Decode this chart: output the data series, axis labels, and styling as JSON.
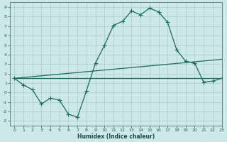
{
  "title": "",
  "xlabel": "Humidex (Indice chaleur)",
  "background_color": "#cce8e8",
  "grid_color": "#aacccc",
  "line_color": "#1a6b5a",
  "xlim": [
    -0.5,
    23
  ],
  "ylim": [
    -3.5,
    9.5
  ],
  "xticks": [
    0,
    1,
    2,
    3,
    4,
    5,
    6,
    7,
    8,
    9,
    10,
    11,
    12,
    13,
    14,
    15,
    16,
    17,
    18,
    19,
    20,
    21,
    22,
    23
  ],
  "yticks": [
    -3,
    -2,
    -1,
    0,
    1,
    2,
    3,
    4,
    5,
    6,
    7,
    8,
    9
  ],
  "curve1_x": [
    0,
    1,
    2,
    3,
    4,
    5,
    6,
    7,
    8,
    9,
    10,
    11,
    12,
    13,
    14,
    15,
    16,
    17,
    18,
    19,
    20,
    21,
    22,
    23
  ],
  "curve1_y": [
    1.5,
    0.8,
    0.3,
    -1.2,
    -0.6,
    -0.8,
    -2.3,
    -2.6,
    0.2,
    3.1,
    5.0,
    7.1,
    7.5,
    8.6,
    8.2,
    8.9,
    8.5,
    7.4,
    4.5,
    3.3,
    3.1,
    1.1,
    1.2,
    1.5
  ],
  "curve2_x": [
    0,
    23
  ],
  "curve2_y": [
    1.5,
    1.5
  ],
  "curve3_x": [
    0,
    23
  ],
  "curve3_y": [
    1.5,
    3.5
  ],
  "marker_style": "+",
  "marker_size": 4,
  "line_width": 0.9
}
